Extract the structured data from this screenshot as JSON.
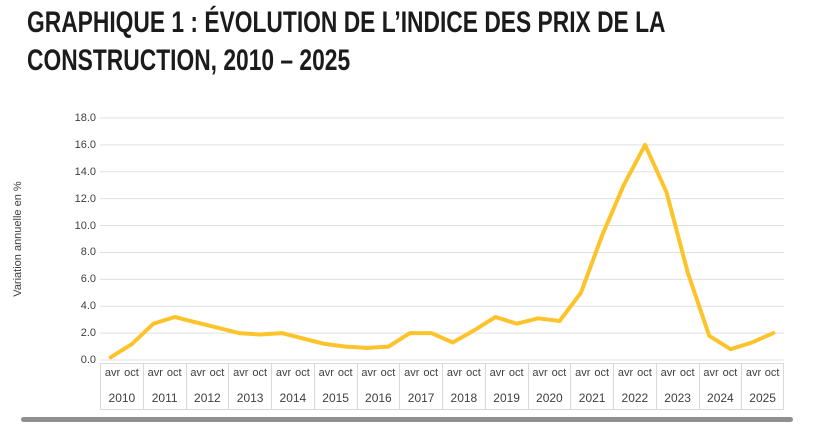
{
  "title": {
    "line1": "GRAPHIQUE 1 : ÉVOLUTION DE L’INDICE DES PRIX DE LA",
    "line2": "CONSTRUCTION, 2010 – 2025",
    "color": "#1b1b1b"
  },
  "chart_data": {
    "type": "line",
    "title": "GRAPHIQUE 1 : ÉVOLUTION DE L’INDICE DES PRIX DE LA CONSTRUCTION, 2010 – 2025",
    "ylabel": "Variation annuelle en %",
    "xlabel": "",
    "ylim": [
      0.0,
      18.0
    ],
    "ytick_step": 2.0,
    "ytick_labels": [
      "0.0",
      "2.0",
      "4.0",
      "6.0",
      "8.0",
      "10.0",
      "12.0",
      "14.0",
      "16.0",
      "18.0"
    ],
    "grid": true,
    "legend": "none",
    "line_color": "#FCC32B",
    "grid_color": "#e0e0e0",
    "axis_text_color": "#3f3f3f",
    "x_axis": {
      "period_labels": [
        "avr",
        "oct"
      ],
      "years": [
        "2010",
        "2011",
        "2012",
        "2013",
        "2014",
        "2015",
        "2016",
        "2017",
        "2018",
        "2019",
        "2020",
        "2021",
        "2022",
        "2023",
        "2024",
        "2025"
      ]
    },
    "x": [
      "avr 2010",
      "oct 2010",
      "avr 2011",
      "oct 2011",
      "avr 2012",
      "oct 2012",
      "avr 2013",
      "oct 2013",
      "avr 2014",
      "oct 2014",
      "avr 2015",
      "oct 2015",
      "avr 2016",
      "oct 2016",
      "avr 2017",
      "oct 2017",
      "avr 2018",
      "oct 2018",
      "avr 2019",
      "oct 2019",
      "avr 2020",
      "oct 2020",
      "avr 2021",
      "oct 2021",
      "avr 2022",
      "oct 2022",
      "avr 2023",
      "oct 2023",
      "avr 2024",
      "oct 2024",
      "avr 2025",
      "oct 2025"
    ],
    "values": [
      0.2,
      1.2,
      2.7,
      3.2,
      2.8,
      2.4,
      2.0,
      1.9,
      2.0,
      1.6,
      1.2,
      1.0,
      0.9,
      1.0,
      2.0,
      2.0,
      1.3,
      2.2,
      3.2,
      2.7,
      3.1,
      2.9,
      5.0,
      9.3,
      13.0,
      16.0,
      12.5,
      6.5,
      1.8,
      0.8,
      1.3,
      2.0
    ]
  },
  "scrollbar": {
    "present": true,
    "color": "#8f8f8f"
  }
}
